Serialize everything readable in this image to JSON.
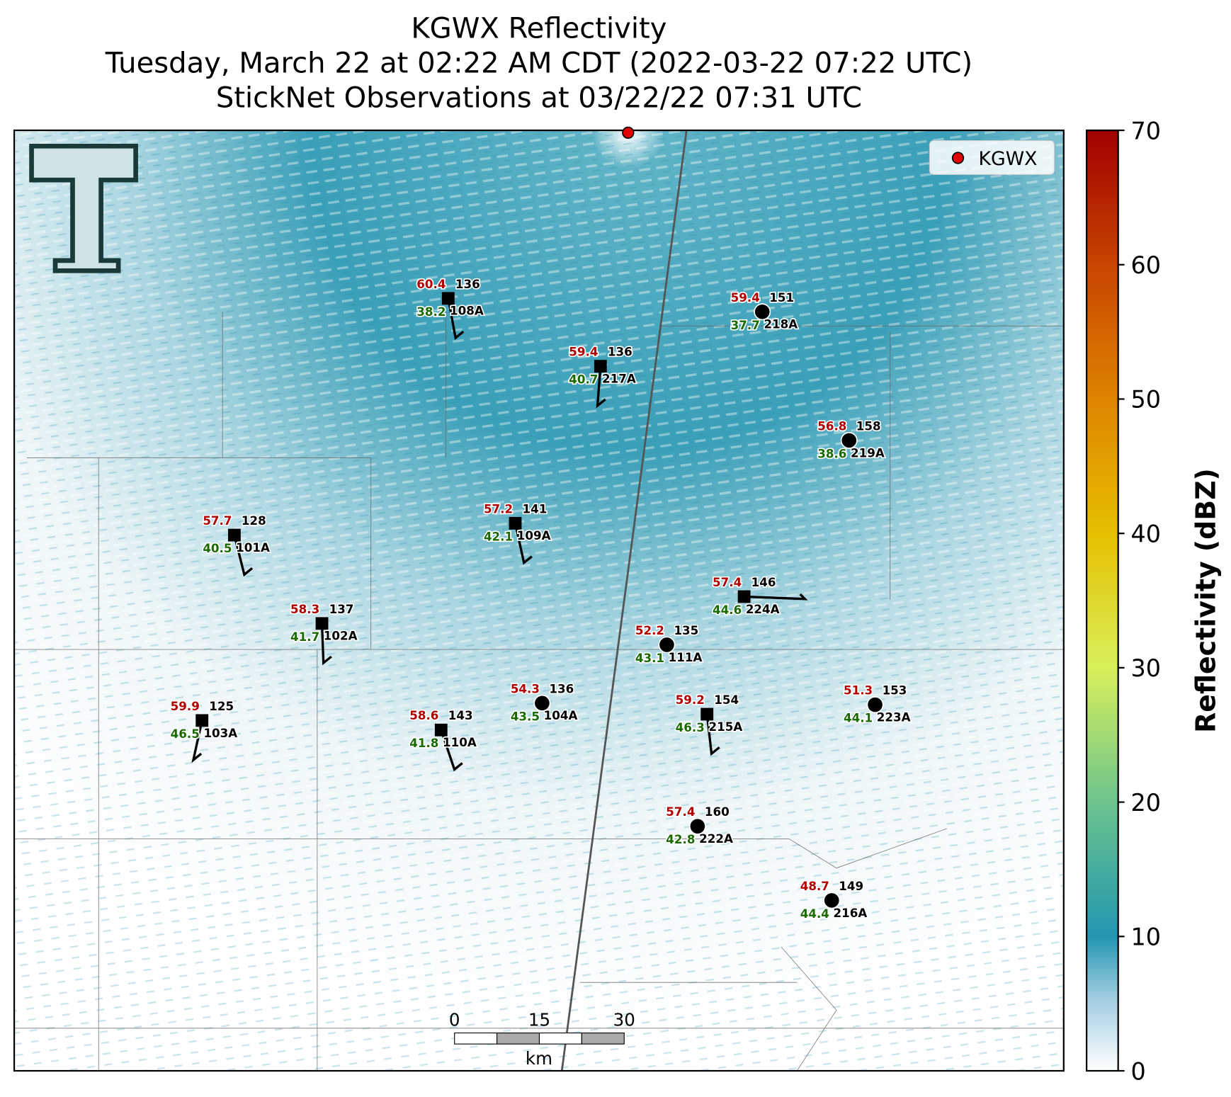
{
  "title": [
    "KGWX Reflectivity",
    "Tuesday, March 22 at 02:22 AM CDT (2022-03-22 07:22 UTC)",
    "StickNet Observations at 03/22/22 07:31 UTC"
  ],
  "legend": {
    "label": "KGWX",
    "color": "#e00000",
    "corner": "upper right"
  },
  "colorbar": {
    "label": "Reflectivity (dBZ)",
    "lim": [
      0,
      70
    ],
    "ticks": [
      0,
      10,
      20,
      30,
      40,
      50,
      60,
      70
    ]
  },
  "scale_bar": {
    "ticks": [
      0,
      15,
      30
    ],
    "unit": "km"
  },
  "stations": [
    {
      "id": "108A",
      "marker": "square",
      "temperature": 60.4,
      "dewpoint": 38.2,
      "pressure": 136
    },
    {
      "id": "218A",
      "marker": "circle",
      "temperature": 59.4,
      "dewpoint": 37.7,
      "pressure": 151
    },
    {
      "id": "217A",
      "marker": "square",
      "temperature": 59.4,
      "dewpoint": 40.7,
      "pressure": 136
    },
    {
      "id": "219A",
      "marker": "circle",
      "temperature": 56.8,
      "dewpoint": 38.6,
      "pressure": 158
    },
    {
      "id": "101A",
      "marker": "square",
      "temperature": 57.7,
      "dewpoint": 40.5,
      "pressure": 128
    },
    {
      "id": "109A",
      "marker": "square",
      "temperature": 57.2,
      "dewpoint": 42.1,
      "pressure": 141
    },
    {
      "id": "224A",
      "marker": "square",
      "temperature": 57.4,
      "dewpoint": 44.6,
      "pressure": 146
    },
    {
      "id": "102A",
      "marker": "square",
      "temperature": 58.3,
      "dewpoint": 41.7,
      "pressure": 137
    },
    {
      "id": "111A",
      "marker": "circle",
      "temperature": 52.2,
      "dewpoint": 43.1,
      "pressure": 135
    },
    {
      "id": "104A",
      "marker": "circle",
      "temperature": 54.3,
      "dewpoint": 43.5,
      "pressure": 136
    },
    {
      "id": "215A",
      "marker": "square",
      "temperature": 59.2,
      "dewpoint": 46.3,
      "pressure": 154
    },
    {
      "id": "223A",
      "marker": "circle",
      "temperature": 51.3,
      "dewpoint": 44.1,
      "pressure": 153
    },
    {
      "id": "103A",
      "marker": "square",
      "temperature": 59.9,
      "dewpoint": 46.5,
      "pressure": 125
    },
    {
      "id": "110A",
      "marker": "square",
      "temperature": 58.6,
      "dewpoint": 41.8,
      "pressure": 143
    },
    {
      "id": "222A",
      "marker": "circle",
      "temperature": 57.4,
      "dewpoint": 42.8,
      "pressure": 160
    },
    {
      "id": "216A",
      "marker": "circle",
      "temperature": 48.7,
      "dewpoint": 44.4,
      "pressure": 149
    }
  ]
}
